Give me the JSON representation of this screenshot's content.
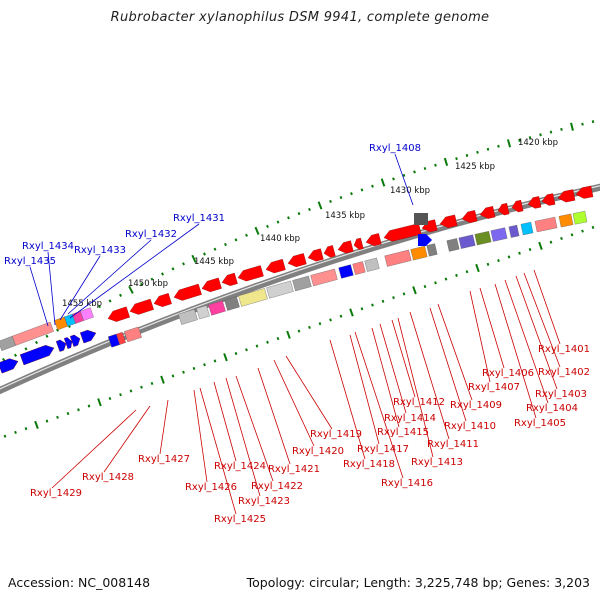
{
  "header": {
    "title": "Rubrobacter xylanophilus DSM 9941, complete genome"
  },
  "footer": {
    "accession": "Accession: NC_008148",
    "topology": "Topology: circular; Length: 3,225,748 bp; Genes: 3,203"
  },
  "colors": {
    "backbone": "#808080",
    "ruler_ticks": "#0a7a0a",
    "gene_labels_minus": "#cc0000",
    "gene_labels_plus": "#0000cc",
    "forward_strand_genes": "#0000ff",
    "reverse_strand_genes": "#ff0000"
  },
  "ruler": {
    "labels": [
      "1420 kbp",
      "1425 kbp",
      "1430 kbp",
      "1435 kbp",
      "1440 kbp",
      "1445 kbp",
      "1450 kbp",
      "1455 kbp"
    ]
  },
  "genes_plus": [
    "Rxyl_1408",
    "Rxyl_1431",
    "Rxyl_1432",
    "Rxyl_1433",
    "Rxyl_1434",
    "Rxyl_1435"
  ],
  "genes_minus": [
    "Rxyl_1401",
    "Rxyl_1402",
    "Rxyl_1403",
    "Rxyl_1404",
    "Rxyl_1405",
    "Rxyl_1406",
    "Rxyl_1407",
    "Rxyl_1409",
    "Rxyl_1410",
    "Rxyl_1411",
    "Rxyl_1412",
    "Rxyl_1413",
    "Rxyl_1414",
    "Rxyl_1415",
    "Rxyl_1416",
    "Rxyl_1417",
    "Rxyl_1418",
    "Rxyl_1419",
    "Rxyl_1420",
    "Rxyl_1421",
    "Rxyl_1422",
    "Rxyl_1423",
    "Rxyl_1424",
    "Rxyl_1425",
    "Rxyl_1426",
    "Rxyl_1427",
    "Rxyl_1428",
    "Rxyl_1429"
  ]
}
